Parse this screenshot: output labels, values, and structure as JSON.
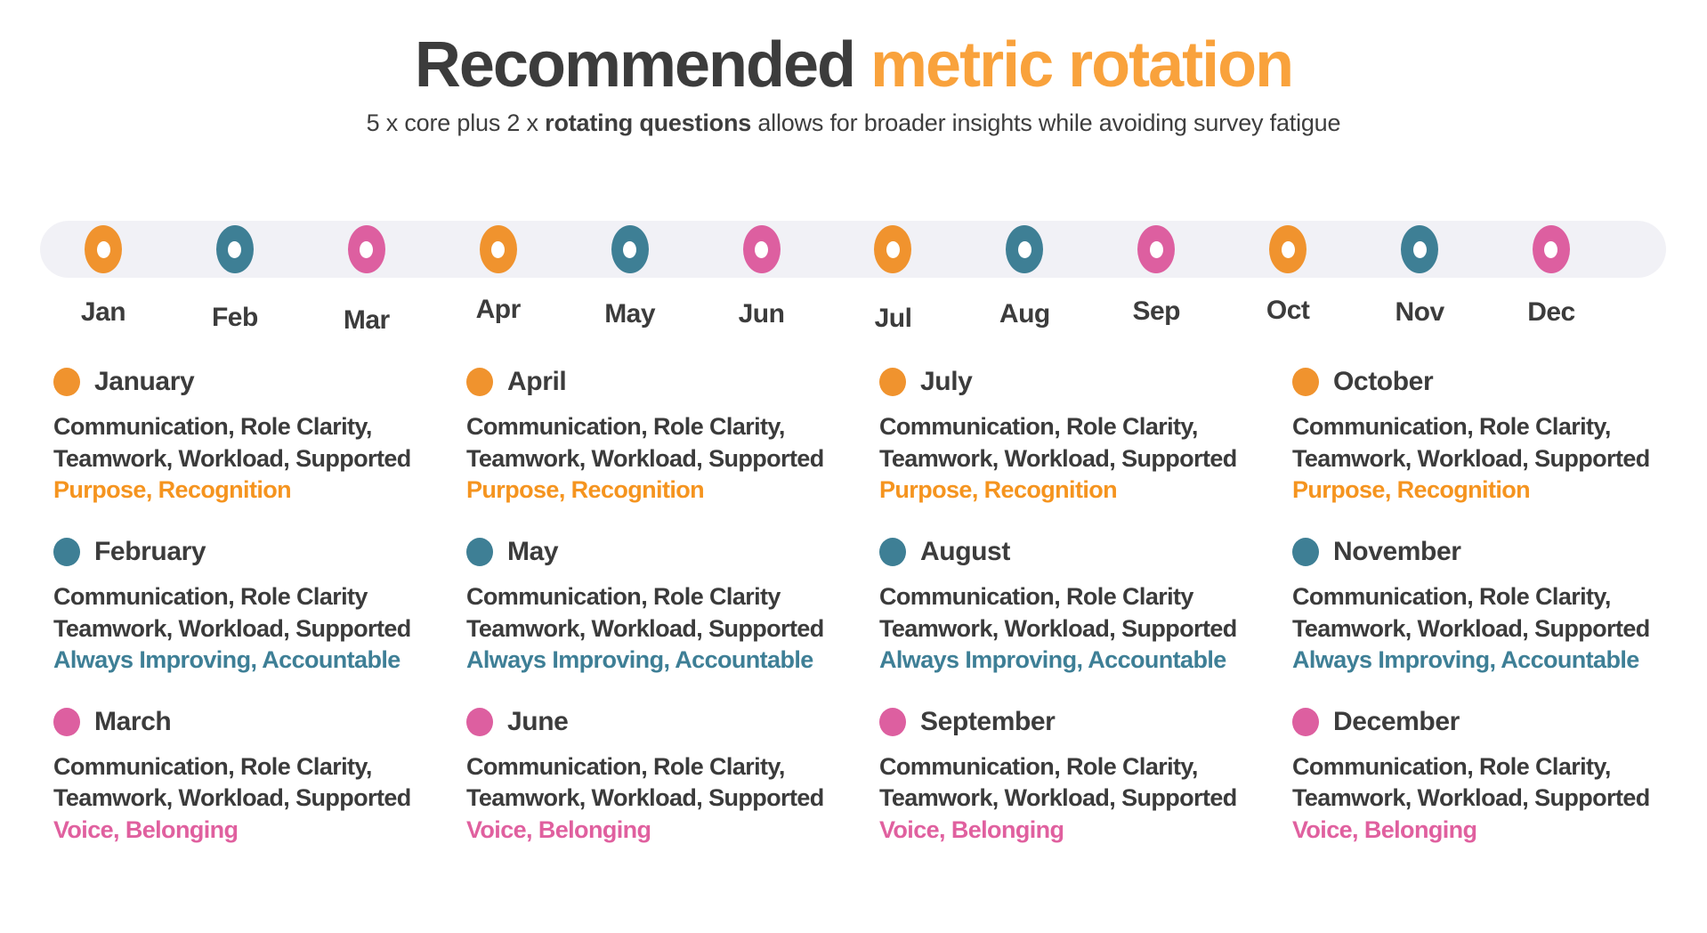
{
  "title": {
    "prefix": "Recommended ",
    "accent": "metric rotation"
  },
  "subtitle": {
    "part1": "5 x core plus 2 x ",
    "bold": "rotating questions",
    "part2": " allows for broader insights while avoiding survey fatigue"
  },
  "colors": {
    "title_dark": "#3C3C3C",
    "title_accent_orange": "#F9A23C",
    "orange": "#F0932E",
    "teal": "#3E7F95",
    "pink": "#DD5FA0",
    "orange_text": "#F5941F",
    "teal_text": "#3E7F96",
    "pink_text": "#E0609F",
    "timeline_track": "#F1F1F6",
    "body_text": "#3B3B3B"
  },
  "timeline": {
    "months": [
      {
        "abbr": "Jan",
        "color": "orange"
      },
      {
        "abbr": "Feb",
        "color": "teal"
      },
      {
        "abbr": "Mar",
        "color": "pink"
      },
      {
        "abbr": "Apr",
        "color": "orange"
      },
      {
        "abbr": "May",
        "color": "teal"
      },
      {
        "abbr": "Jun",
        "color": "pink"
      },
      {
        "abbr": "Jul",
        "color": "orange"
      },
      {
        "abbr": "Aug",
        "color": "teal"
      },
      {
        "abbr": "Sep",
        "color": "pink"
      },
      {
        "abbr": "Oct",
        "color": "orange"
      },
      {
        "abbr": "Nov",
        "color": "teal"
      },
      {
        "abbr": "Dec",
        "color": "pink"
      }
    ]
  },
  "cards": [
    {
      "month": "January",
      "color": "orange",
      "core_line1": "Communication, Role Clarity,",
      "core_line2": "Teamwork, Workload, Supported",
      "rotating": "Purpose, Recognition"
    },
    {
      "month": "February",
      "color": "teal",
      "core_line1": "Communication, Role Clarity",
      "core_line2": "Teamwork, Workload, Supported",
      "rotating": "Always Improving, Accountable"
    },
    {
      "month": "March",
      "color": "pink",
      "core_line1": "Communication, Role Clarity,",
      "core_line2": "Teamwork, Workload, Supported",
      "rotating": "Voice, Belonging"
    },
    {
      "month": "April",
      "color": "orange",
      "core_line1": "Communication, Role Clarity,",
      "core_line2": "Teamwork, Workload, Supported",
      "rotating": "Purpose, Recognition"
    },
    {
      "month": "May",
      "color": "teal",
      "core_line1": "Communication, Role Clarity",
      "core_line2": "Teamwork, Workload, Supported",
      "rotating": "Always Improving, Accountable"
    },
    {
      "month": "June",
      "color": "pink",
      "core_line1": "Communication, Role Clarity,",
      "core_line2": "Teamwork, Workload, Supported",
      "rotating": "Voice, Belonging"
    },
    {
      "month": "July",
      "color": "orange",
      "core_line1": "Communication, Role Clarity,",
      "core_line2": "Teamwork, Workload, Supported",
      "rotating": "Purpose, Recognition"
    },
    {
      "month": "August",
      "color": "teal",
      "core_line1": "Communication, Role Clarity",
      "core_line2": "Teamwork, Workload, Supported",
      "rotating": "Always Improving, Accountable"
    },
    {
      "month": "September",
      "color": "pink",
      "core_line1": "Communication, Role Clarity,",
      "core_line2": "Teamwork, Workload, Supported",
      "rotating": "Voice, Belonging"
    },
    {
      "month": "October",
      "color": "orange",
      "core_line1": "Communication, Role Clarity,",
      "core_line2": "Teamwork, Workload, Supported",
      "rotating": "Purpose, Recognition"
    },
    {
      "month": "November",
      "color": "teal",
      "core_line1": "Communication, Role Clarity,",
      "core_line2": "Teamwork, Workload, Supported",
      "rotating": "Always Improving, Accountable"
    },
    {
      "month": "December",
      "color": "pink",
      "core_line1": "Communication, Role Clarity,",
      "core_line2": "Teamwork, Workload, Supported",
      "rotating": "Voice, Belonging"
    }
  ]
}
